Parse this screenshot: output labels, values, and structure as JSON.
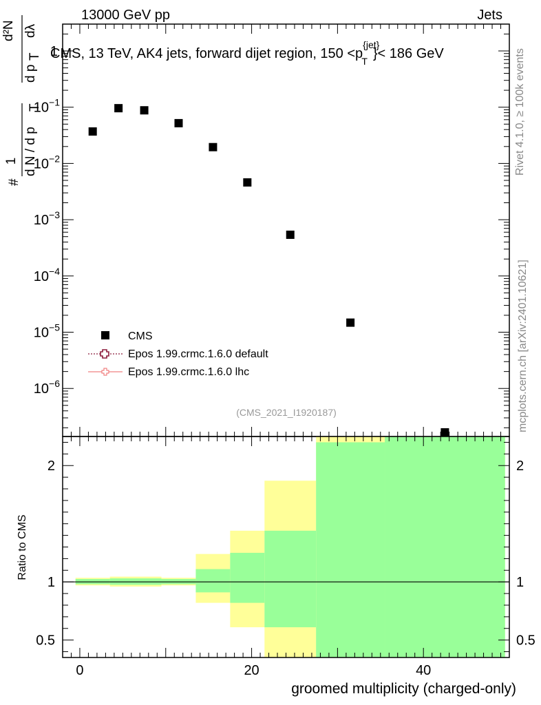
{
  "header": {
    "left": "13000 GeV pp",
    "right": "Jets"
  },
  "side_labels": {
    "rivet": "Rivet 4.1.0, ≥ 100k events",
    "mcplots": "mcplots.cern.ch [arXiv:2401.10621]"
  },
  "analysis_tag": "(CMS_2021_I1920187)",
  "legend": {
    "items": [
      {
        "label": "CMS",
        "color": "#000000"
      },
      {
        "label": "Epos 1.99.crmc.1.6.0 default",
        "color": "#8b1a3a"
      },
      {
        "label": "Epos 1.99.crmc.1.6.0 lhc",
        "color": "#f08080"
      }
    ]
  },
  "colors": {
    "band_inner": "#99ff99",
    "band_outer": "#ffff99",
    "marker": "#000000"
  },
  "chart_data": [
    {
      "type": "scatter",
      "title_main": "CMS, 13 TeV, AK4 jets, forward dijet region, 150 <p",
      "title_sup": "{jet}",
      "title_sub": "T",
      "title_end": "}< 186 GeV",
      "yscale": "log",
      "xlim": [
        -2,
        50
      ],
      "ylim": [
        1.4e-07,
        3
      ],
      "ylabel_parts": {
        "hash1": "#",
        "one": "1",
        "dN": "d N / d p",
        "T": "T",
        "hash2": "#",
        "dN2": "d²N",
        "dpT": "d p",
        "T2": "T",
        "dlambda": "dλ"
      },
      "yticks": [
        {
          "value": 1,
          "label": "1",
          "exp": ""
        },
        {
          "value": 0.1,
          "label": "10",
          "exp": "−1"
        },
        {
          "value": 0.01,
          "label": "10",
          "exp": "−2"
        },
        {
          "value": 0.001,
          "label": "10",
          "exp": "−3"
        },
        {
          "value": 0.0001,
          "label": "10",
          "exp": "−4"
        },
        {
          "value": 1e-05,
          "label": "10",
          "exp": "−5"
        },
        {
          "value": 1e-06,
          "label": "10",
          "exp": "−6"
        }
      ],
      "series": [
        {
          "name": "CMS",
          "points": [
            {
              "x": 1.5,
              "y": 0.037
            },
            {
              "x": 4.5,
              "y": 0.096
            },
            {
              "x": 7.5,
              "y": 0.088
            },
            {
              "x": 11.5,
              "y": 0.052
            },
            {
              "x": 15.5,
              "y": 0.0195
            },
            {
              "x": 19.5,
              "y": 0.0046
            },
            {
              "x": 24.5,
              "y": 0.00054
            },
            {
              "x": 31.5,
              "y": 1.48e-05
            },
            {
              "x": 42.5,
              "y": 1.3e-07
            }
          ]
        }
      ]
    },
    {
      "type": "area",
      "ylabel": "Ratio to CMS",
      "xlabel": "groomed multiplicity (charged-only)",
      "xlim": [
        -2,
        50
      ],
      "ylim": [
        0.35,
        2.25
      ],
      "xticks": [
        0,
        20,
        40
      ],
      "yticks": [
        {
          "value": 0.5,
          "label": "0.5"
        },
        {
          "value": 1,
          "label": "1"
        },
        {
          "value": 2,
          "label": "2"
        }
      ],
      "bins": [
        {
          "lo": -0.5,
          "hi": 3.5,
          "inner": [
            0.98,
            1.025
          ],
          "outer": [
            0.97,
            1.035
          ]
        },
        {
          "lo": 3.5,
          "hi": 9.5,
          "inner": [
            0.975,
            1.03
          ],
          "outer": [
            0.96,
            1.045
          ]
        },
        {
          "lo": 9.5,
          "hi": 13.5,
          "inner": [
            0.98,
            1.025
          ],
          "outer": [
            0.97,
            1.035
          ]
        },
        {
          "lo": 13.5,
          "hi": 17.5,
          "inner": [
            0.91,
            1.11
          ],
          "outer": [
            0.82,
            1.24
          ]
        },
        {
          "lo": 17.5,
          "hi": 21.5,
          "inner": [
            0.82,
            1.25
          ],
          "outer": [
            0.61,
            1.44
          ]
        },
        {
          "lo": 21.5,
          "hi": 27.5,
          "inner": [
            0.61,
            1.44
          ],
          "outer": [
            0.35,
            1.87
          ]
        },
        {
          "lo": 27.5,
          "hi": 35.5,
          "inner": [
            0.35,
            2.2
          ],
          "outer": [
            0.35,
            2.25
          ]
        },
        {
          "lo": 35.5,
          "hi": 49.5,
          "inner": [
            0.35,
            2.25
          ],
          "outer": [
            0.35,
            2.25
          ]
        }
      ]
    }
  ]
}
